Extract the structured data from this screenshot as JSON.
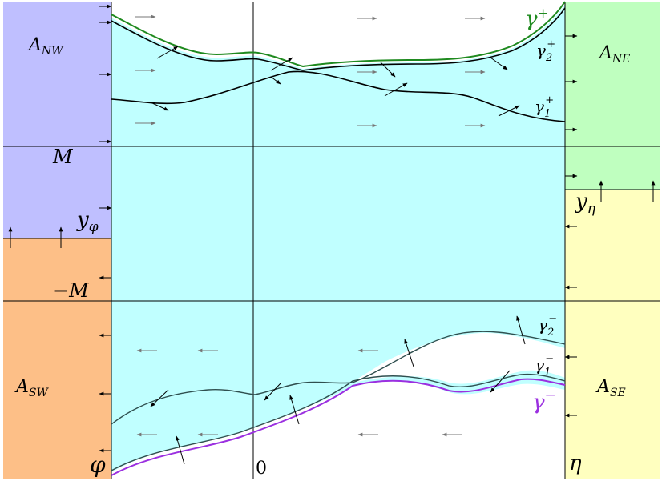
{
  "regions": {
    "nw": {
      "main": "A",
      "sub": "NW"
    },
    "ne": {
      "main": "A",
      "sub": "NE"
    },
    "sw": {
      "main": "A",
      "sub": "SW"
    },
    "se": {
      "main": "A",
      "sub": "SE"
    }
  },
  "axis_labels": {
    "M": "M",
    "minus_M": "−M",
    "y_phi_main": "y",
    "y_phi_sub": "φ",
    "y_eta_main": "y",
    "y_eta_sub": "η",
    "phi": "φ",
    "zero": "0",
    "eta": "η"
  },
  "curve_labels": {
    "gamma_plus_main": "γ",
    "gamma_plus_sup": "+",
    "gamma2_plus_main": "γ",
    "gamma2_plus_sub": "2",
    "gamma2_plus_sup": "+",
    "gamma1_plus_main": "γ",
    "gamma1_plus_sub": "1",
    "gamma1_plus_sup": "+",
    "gamma2_minus_main": "γ",
    "gamma2_minus_sub": "2",
    "gamma2_minus_sup": "−",
    "gamma1_minus_main": "γ",
    "gamma1_minus_sub": "1",
    "gamma1_minus_sup": "−",
    "gamma_minus_main": "γ",
    "gamma_minus_sup": "−"
  },
  "colors": {
    "nw": "#bfbfff",
    "ne": "#bfffbf",
    "sw": "#fdbf87",
    "se": "#ffffbf",
    "band": "#c0ffff",
    "gamma_plus": "#1f8a1f",
    "gamma_minus": "#9b30e0",
    "grey_arrow": "#777777"
  }
}
